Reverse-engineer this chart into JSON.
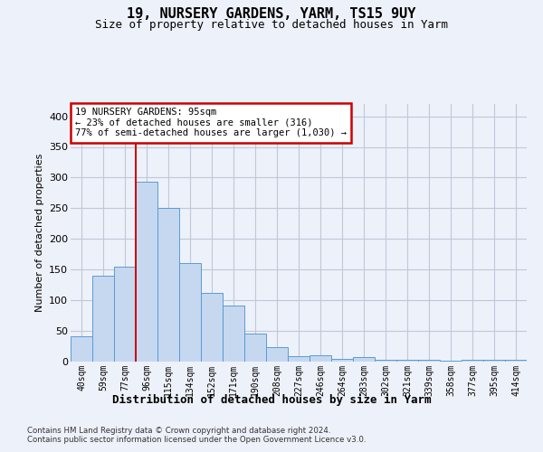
{
  "title": "19, NURSERY GARDENS, YARM, TS15 9UY",
  "subtitle": "Size of property relative to detached houses in Yarm",
  "xlabel": "Distribution of detached houses by size in Yarm",
  "ylabel": "Number of detached properties",
  "categories": [
    "40sqm",
    "59sqm",
    "77sqm",
    "96sqm",
    "115sqm",
    "134sqm",
    "152sqm",
    "171sqm",
    "190sqm",
    "208sqm",
    "227sqm",
    "246sqm",
    "264sqm",
    "283sqm",
    "302sqm",
    "321sqm",
    "339sqm",
    "358sqm",
    "377sqm",
    "395sqm",
    "414sqm"
  ],
  "values": [
    42,
    140,
    155,
    293,
    251,
    160,
    112,
    91,
    46,
    23,
    9,
    10,
    5,
    8,
    3,
    3,
    3,
    2,
    3,
    3,
    3
  ],
  "bar_color": "#c5d8f0",
  "bar_edge_color": "#5b9bd5",
  "grid_color": "#c0c8d8",
  "annotation_line1": "19 NURSERY GARDENS: 95sqm",
  "annotation_line2": "← 23% of detached houses are smaller (316)",
  "annotation_line3": "77% of semi-detached houses are larger (1,030) →",
  "footnote1": "Contains HM Land Registry data © Crown copyright and database right 2024.",
  "footnote2": "Contains public sector information licensed under the Open Government Licence v3.0.",
  "ylim": [
    0,
    420
  ],
  "yticks": [
    0,
    50,
    100,
    150,
    200,
    250,
    300,
    350,
    400
  ],
  "background_color": "#edf1f9",
  "red_line_color": "#cc0000"
}
